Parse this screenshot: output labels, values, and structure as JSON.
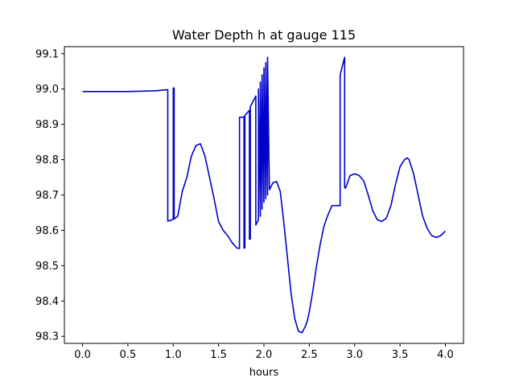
{
  "chart_data": {
    "type": "line",
    "title": "Water Depth h at gauge 115",
    "xlabel": "hours",
    "ylabel": "",
    "xlim": [
      -0.2,
      4.2
    ],
    "ylim": [
      98.28,
      99.12
    ],
    "xticks": [
      0.0,
      0.5,
      1.0,
      1.5,
      2.0,
      2.5,
      3.0,
      3.5,
      4.0
    ],
    "xtick_labels": [
      "0.0",
      "0.5",
      "1.0",
      "1.5",
      "2.0",
      "2.5",
      "3.0",
      "3.5",
      "4.0"
    ],
    "yticks": [
      98.3,
      98.4,
      98.5,
      98.6,
      98.7,
      98.8,
      98.9,
      99.0,
      99.1
    ],
    "ytick_labels": [
      "98.3",
      "98.4",
      "98.5",
      "98.6",
      "98.7",
      "98.8",
      "98.9",
      "99.0",
      "99.1"
    ],
    "grid": false,
    "color": "#0000cc",
    "series": [
      {
        "x": [
          0.0,
          0.5,
          0.8,
          0.93,
          0.94,
          0.94,
          0.99,
          1.0,
          1.0,
          1.01,
          1.01,
          1.05,
          1.1,
          1.15,
          1.2,
          1.25,
          1.3,
          1.35,
          1.4,
          1.45,
          1.5,
          1.55,
          1.6,
          1.65,
          1.7,
          1.72,
          1.73,
          1.73,
          1.78,
          1.78,
          1.79,
          1.79,
          1.84,
          1.84,
          1.85,
          1.85,
          1.88,
          1.91,
          1.91,
          1.94,
          1.94,
          1.96,
          1.96,
          1.98,
          1.98,
          2.0,
          2.0,
          2.02,
          2.02,
          2.04,
          2.04,
          2.06,
          2.06,
          2.1,
          2.14,
          2.18,
          2.22,
          2.26,
          2.3,
          2.34,
          2.38,
          2.42,
          2.46,
          2.48,
          2.5,
          2.54,
          2.58,
          2.62,
          2.66,
          2.7,
          2.75,
          2.8,
          2.84,
          2.84,
          2.89,
          2.89,
          2.9,
          2.95,
          3.0,
          3.05,
          3.1,
          3.15,
          3.2,
          3.25,
          3.3,
          3.35,
          3.4,
          3.45,
          3.5,
          3.55,
          3.58,
          3.6,
          3.65,
          3.7,
          3.75,
          3.8,
          3.85,
          3.9,
          3.95,
          4.0
        ],
        "y": [
          98.993,
          98.993,
          98.995,
          98.998,
          98.998,
          98.626,
          98.63,
          98.632,
          99.003,
          99.003,
          98.632,
          98.64,
          98.71,
          98.75,
          98.81,
          98.84,
          98.845,
          98.81,
          98.75,
          98.69,
          98.625,
          98.6,
          98.585,
          98.565,
          98.55,
          98.549,
          98.549,
          98.92,
          98.921,
          98.55,
          98.55,
          98.925,
          98.94,
          98.575,
          98.575,
          98.95,
          98.965,
          98.98,
          98.615,
          98.63,
          99.0,
          98.64,
          99.02,
          98.66,
          99.04,
          98.68,
          99.06,
          98.69,
          99.075,
          98.7,
          99.09,
          98.715,
          98.715,
          98.735,
          98.738,
          98.71,
          98.62,
          98.52,
          98.42,
          98.35,
          98.315,
          98.31,
          98.33,
          98.345,
          98.37,
          98.43,
          98.5,
          98.56,
          98.61,
          98.64,
          98.67,
          98.67,
          98.67,
          99.04,
          99.09,
          98.72,
          98.72,
          98.755,
          98.76,
          98.755,
          98.74,
          98.7,
          98.655,
          98.63,
          98.625,
          98.635,
          98.67,
          98.73,
          98.78,
          98.8,
          98.805,
          98.8,
          98.76,
          98.7,
          98.64,
          98.605,
          98.585,
          98.58,
          98.585,
          98.598
        ]
      }
    ]
  }
}
